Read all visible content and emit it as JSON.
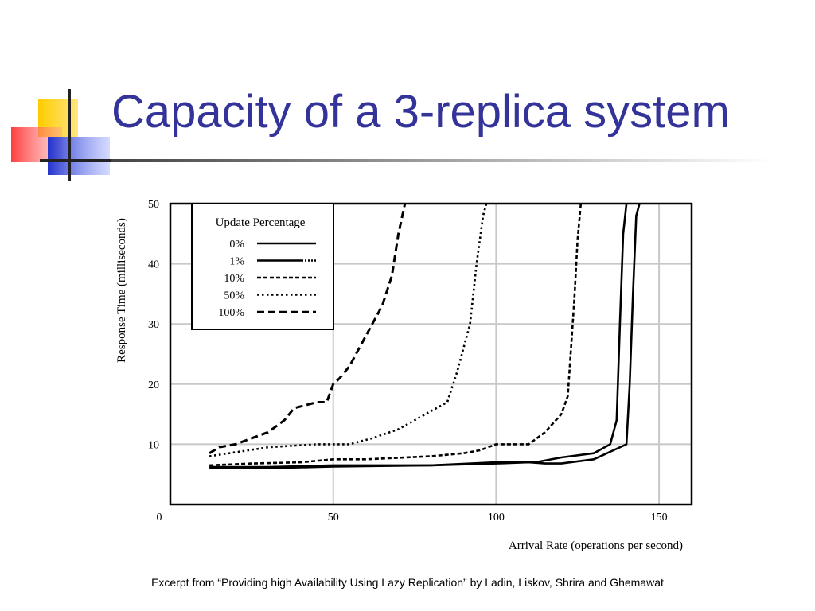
{
  "slide": {
    "title": "Capacity of a 3-replica system",
    "caption": "Excerpt from “Providing high Availability Using Lazy Replication” by Ladin, Liskov, Shrira and Ghemawat",
    "title_color": "#333399"
  },
  "chart_data": {
    "type": "line",
    "xlabel": "Arrival Rate (operations per second)",
    "ylabel": "Response Time (milliseconds)",
    "xlim": [
      0,
      160
    ],
    "ylim": [
      0,
      50
    ],
    "x_ticks": [
      0,
      50,
      100,
      150
    ],
    "y_ticks": [
      10,
      20,
      30,
      40,
      50
    ],
    "grid": true,
    "legend_title": "Update Percentage",
    "legend_position": "top-left",
    "series": [
      {
        "name": "0%",
        "dash": "solid",
        "x": [
          12,
          30,
          50,
          80,
          100,
          110,
          115,
          120,
          130,
          140,
          141,
          142,
          143,
          144
        ],
        "y": [
          6,
          6,
          6.3,
          6.5,
          6.8,
          7,
          6.8,
          6.8,
          7.5,
          10,
          20,
          35,
          48,
          50
        ]
      },
      {
        "name": "1%",
        "dash": "solid-dot",
        "x": [
          12,
          30,
          50,
          80,
          100,
          112,
          120,
          130,
          135,
          137,
          138,
          139,
          140
        ],
        "y": [
          6.2,
          6.2,
          6.5,
          6.5,
          7,
          7,
          7.8,
          8.5,
          10,
          14,
          30,
          45,
          50
        ]
      },
      {
        "name": "10%",
        "dash": "dash-fine",
        "x": [
          12,
          25,
          40,
          50,
          60,
          80,
          90,
          95,
          100,
          110,
          115,
          120,
          122,
          123,
          124,
          125,
          126
        ],
        "y": [
          6.5,
          6.8,
          7,
          7.5,
          7.5,
          8,
          8.5,
          9,
          10,
          10,
          12,
          15,
          18,
          26,
          34,
          44,
          50
        ]
      },
      {
        "name": "50%",
        "dash": "dotted",
        "x": [
          12,
          30,
          45,
          55,
          62,
          70,
          75,
          80,
          85,
          88,
          90,
          92,
          93,
          94,
          95,
          96,
          97
        ],
        "y": [
          8,
          9.5,
          10,
          10,
          11,
          12.5,
          14,
          15.5,
          17,
          22,
          26,
          30,
          35,
          40,
          44,
          48,
          50
        ]
      },
      {
        "name": "100%",
        "dash": "dashed",
        "x": [
          12,
          15,
          20,
          25,
          30,
          35,
          38,
          45,
          48,
          50,
          52,
          55,
          58,
          60,
          62,
          65,
          68,
          70,
          72
        ],
        "y": [
          8.5,
          9.5,
          10,
          11,
          12,
          14,
          16,
          17,
          17,
          20,
          21,
          23,
          26,
          28,
          30,
          33,
          38,
          45,
          50
        ]
      }
    ]
  }
}
